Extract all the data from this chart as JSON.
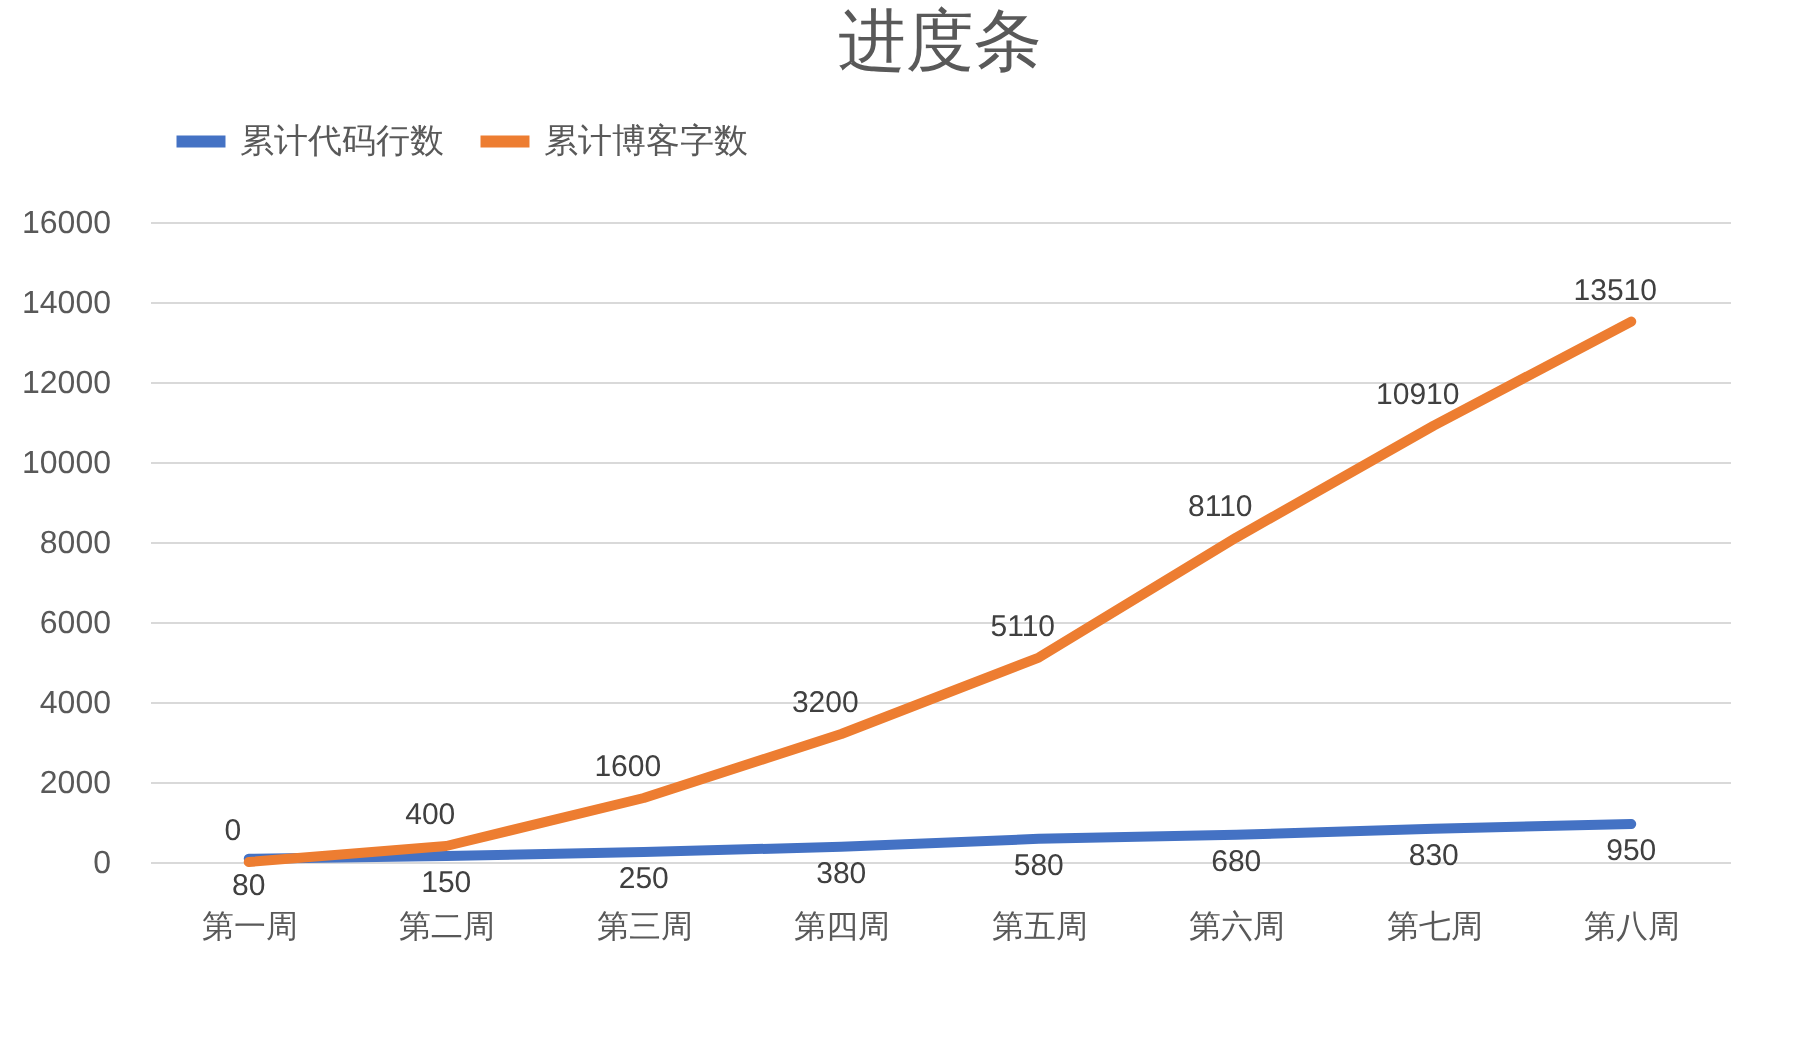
{
  "chart_data": {
    "type": "line",
    "title": "进度条",
    "categories": [
      "第一周",
      "第二周",
      "第三周",
      "第四周",
      "第五周",
      "第六周",
      "第七周",
      "第八周"
    ],
    "series": [
      {
        "name": "累计代码行数",
        "color": "#4472c4",
        "values": [
          80,
          150,
          250,
          380,
          580,
          680,
          830,
          950
        ]
      },
      {
        "name": "累计博客字数",
        "color": "#ed7d31",
        "values": [
          0,
          400,
          1600,
          3200,
          5110,
          8110,
          10910,
          13510
        ]
      }
    ],
    "ylim": [
      0,
      16000
    ],
    "yticks": [
      0,
      2000,
      4000,
      6000,
      8000,
      10000,
      12000,
      14000,
      16000
    ],
    "grid": "y",
    "legend": "top",
    "data_labels": true,
    "marker": "none",
    "line_style": "solid"
  }
}
